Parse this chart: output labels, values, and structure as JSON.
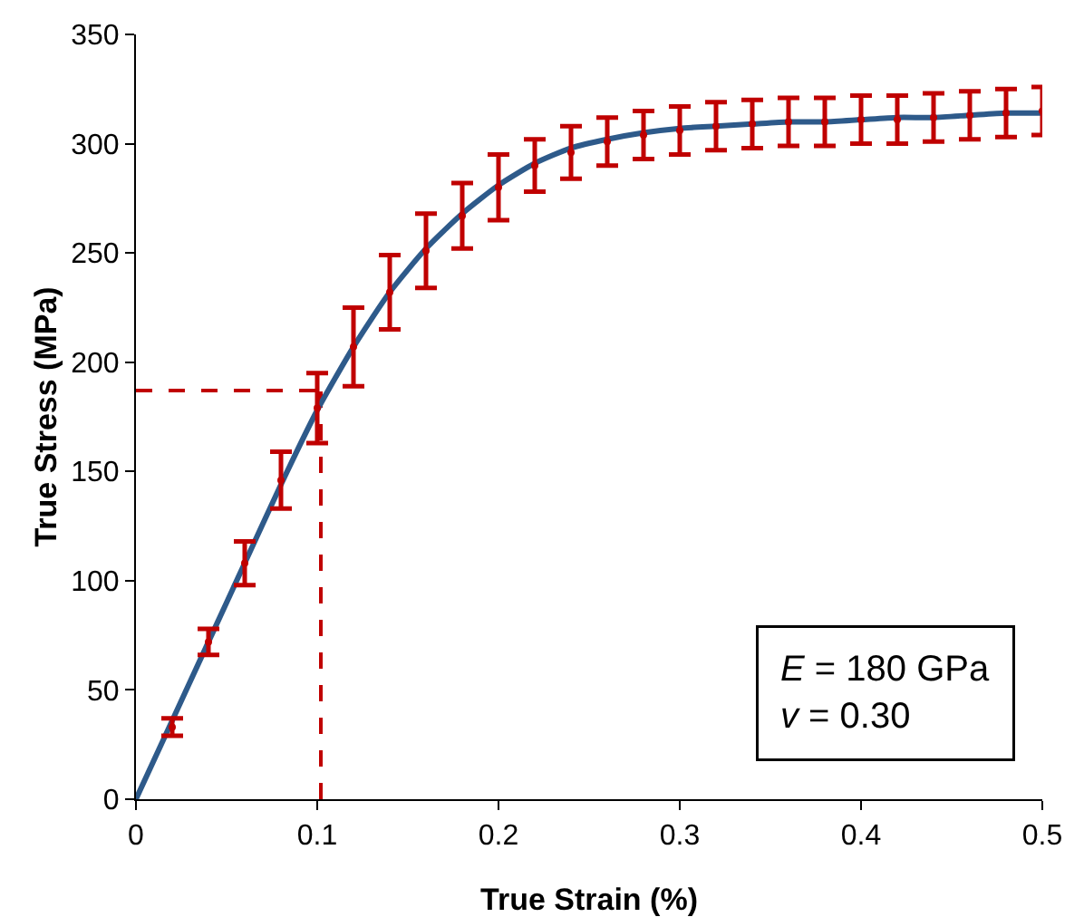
{
  "chart_data": {
    "type": "line",
    "xlabel": "True Strain (%)",
    "ylabel": "True Stress (MPa)",
    "xlim": [
      0,
      0.5
    ],
    "xticks": [
      0,
      0.1,
      0.2,
      0.3,
      0.4,
      0.5
    ],
    "ylim": [
      0,
      350
    ],
    "yticks": [
      0,
      50,
      100,
      150,
      200,
      250,
      300,
      350
    ],
    "grid": false,
    "legend": false,
    "series": [
      {
        "color": "#2e5a8a",
        "x": [
          0,
          0.02,
          0.04,
          0.06,
          0.08,
          0.1,
          0.12,
          0.14,
          0.16,
          0.18,
          0.2,
          0.22,
          0.24,
          0.26,
          0.28,
          0.3,
          0.32,
          0.34,
          0.36,
          0.38,
          0.4,
          0.42,
          0.44,
          0.46,
          0.48,
          0.5
        ],
        "values": [
          0,
          36,
          72,
          108,
          144,
          178,
          207,
          232,
          252,
          268,
          281,
          291,
          298,
          302,
          305,
          307,
          308,
          309,
          310,
          310,
          311,
          312,
          312,
          313,
          314,
          314
        ]
      },
      {
        "type": "scatter",
        "color": "#c00000",
        "x": [
          0.02,
          0.04,
          0.06,
          0.08,
          0.1,
          0.12,
          0.14,
          0.16,
          0.18,
          0.2,
          0.22,
          0.24,
          0.26,
          0.28,
          0.3,
          0.32,
          0.34,
          0.36,
          0.38,
          0.4,
          0.42,
          0.44,
          0.46,
          0.48,
          0.5
        ],
        "values": [
          33,
          72,
          108,
          146,
          179,
          207,
          232,
          251,
          267,
          280,
          290,
          296,
          301,
          304,
          306,
          308,
          309,
          310,
          310,
          311,
          311,
          312,
          313,
          314,
          315
        ],
        "errors": [
          4,
          6,
          10,
          13,
          16,
          18,
          17,
          17,
          15,
          15,
          12,
          12,
          11,
          11,
          11,
          11,
          11,
          11,
          11,
          11,
          11,
          11,
          11,
          11,
          11
        ]
      }
    ],
    "ref_lines": [
      {
        "axis": "y",
        "value": 187,
        "color": "#c00000",
        "line_style": "dashed"
      },
      {
        "axis": "x",
        "value": 0.102,
        "color": "#c00000",
        "line_style": "dashed"
      }
    ],
    "annotations": [
      "E = 180 GPa\nv = 0.30"
    ]
  }
}
